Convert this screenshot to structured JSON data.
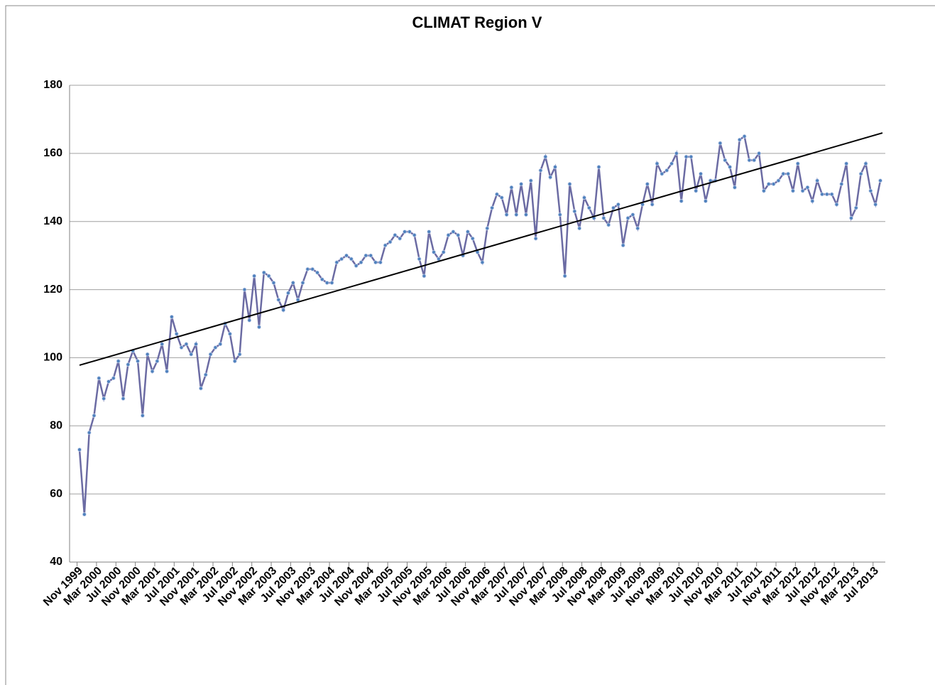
{
  "chart_data": {
    "type": "line",
    "title": "CLIMAT Region V",
    "categories": [
      "Nov 1999",
      null,
      null,
      null,
      "Mar 2000",
      null,
      null,
      null,
      "Jul 2000",
      null,
      null,
      null,
      "Nov 2000",
      null,
      null,
      null,
      "Mar 2001",
      null,
      null,
      null,
      "Jul 2001",
      null,
      null,
      null,
      "Nov 2001",
      null,
      null,
      null,
      "Mar 2002",
      null,
      null,
      null,
      "Jul 2002",
      null,
      null,
      null,
      "Nov 2002",
      null,
      null,
      null,
      "Mar 2003",
      null,
      null,
      null,
      "Jul 2003",
      null,
      null,
      null,
      "Nov 2003",
      null,
      null,
      null,
      "Mar 2004",
      null,
      null,
      null,
      "Jul 2004",
      null,
      null,
      null,
      "Nov 2004",
      null,
      null,
      null,
      "Mar 2005",
      null,
      null,
      null,
      "Jul 2005",
      null,
      null,
      null,
      "Nov 2005",
      null,
      null,
      null,
      "Mar 2006",
      null,
      null,
      null,
      "Jul 2006",
      null,
      null,
      null,
      "Nov 2006",
      null,
      null,
      null,
      "Mar 2007",
      null,
      null,
      null,
      "Jul 2007",
      null,
      null,
      null,
      "Nov 2007",
      null,
      null,
      null,
      "Mar 2008",
      null,
      null,
      null,
      "Jul 2008",
      null,
      null,
      null,
      "Nov 2008",
      null,
      null,
      null,
      "Mar 2009",
      null,
      null,
      null,
      "Jul 2009",
      null,
      null,
      null,
      "Nov 2009",
      null,
      null,
      null,
      "Mar 2010",
      null,
      null,
      null,
      "Jul 2010",
      null,
      null,
      null,
      "Nov 2010",
      null,
      null,
      null,
      "Mar 2011",
      null,
      null,
      null,
      "Jul 2011",
      null,
      null,
      null,
      "Nov 2011",
      null,
      null,
      null,
      "Mar 2012",
      null,
      null,
      null,
      "Jul 2012",
      null,
      null,
      null,
      "Nov 2012",
      null,
      null,
      null,
      "Mar 2013",
      null,
      null,
      null,
      "Jul 2013",
      null
    ],
    "values": [
      73,
      54,
      78,
      83,
      94,
      88,
      93,
      94,
      99,
      88,
      98,
      102,
      99,
      83,
      101,
      96,
      99,
      104,
      96,
      112,
      107,
      103,
      104,
      101,
      104,
      91,
      95,
      101,
      103,
      104,
      110,
      107,
      99,
      101,
      120,
      111,
      124,
      109,
      125,
      124,
      122,
      117,
      114,
      119,
      122,
      117,
      122,
      126,
      126,
      125,
      123,
      122,
      122,
      128,
      129,
      130,
      129,
      127,
      128,
      130,
      130,
      128,
      128,
      133,
      134,
      136,
      135,
      137,
      137,
      136,
      129,
      124,
      137,
      131,
      129,
      131,
      136,
      137,
      136,
      130,
      137,
      135,
      131,
      128,
      138,
      144,
      148,
      147,
      142,
      150,
      142,
      151,
      142,
      152,
      135,
      155,
      159,
      153,
      156,
      142,
      124,
      151,
      143,
      138,
      147,
      144,
      141,
      156,
      141,
      139,
      144,
      145,
      133,
      141,
      142,
      138,
      145,
      151,
      145,
      157,
      154,
      155,
      157,
      160,
      146,
      159,
      159,
      149,
      154,
      146,
      152,
      152,
      163,
      158,
      156,
      150,
      164,
      165,
      158,
      158,
      160,
      149,
      151,
      151,
      152,
      154,
      154,
      149,
      157,
      149,
      150,
      146,
      152,
      148,
      148,
      148,
      145,
      151,
      157,
      141,
      144,
      154,
      157,
      149,
      145,
      152
    ],
    "color": "#6b6ba3",
    "marker_color": "#4f81bd",
    "trend": {
      "values": [
        97.8,
        166
      ],
      "color": "#000000"
    },
    "ylim": [
      40,
      180
    ],
    "yticks": [
      40,
      60,
      80,
      100,
      120,
      140,
      160,
      180
    ],
    "grid": true
  }
}
